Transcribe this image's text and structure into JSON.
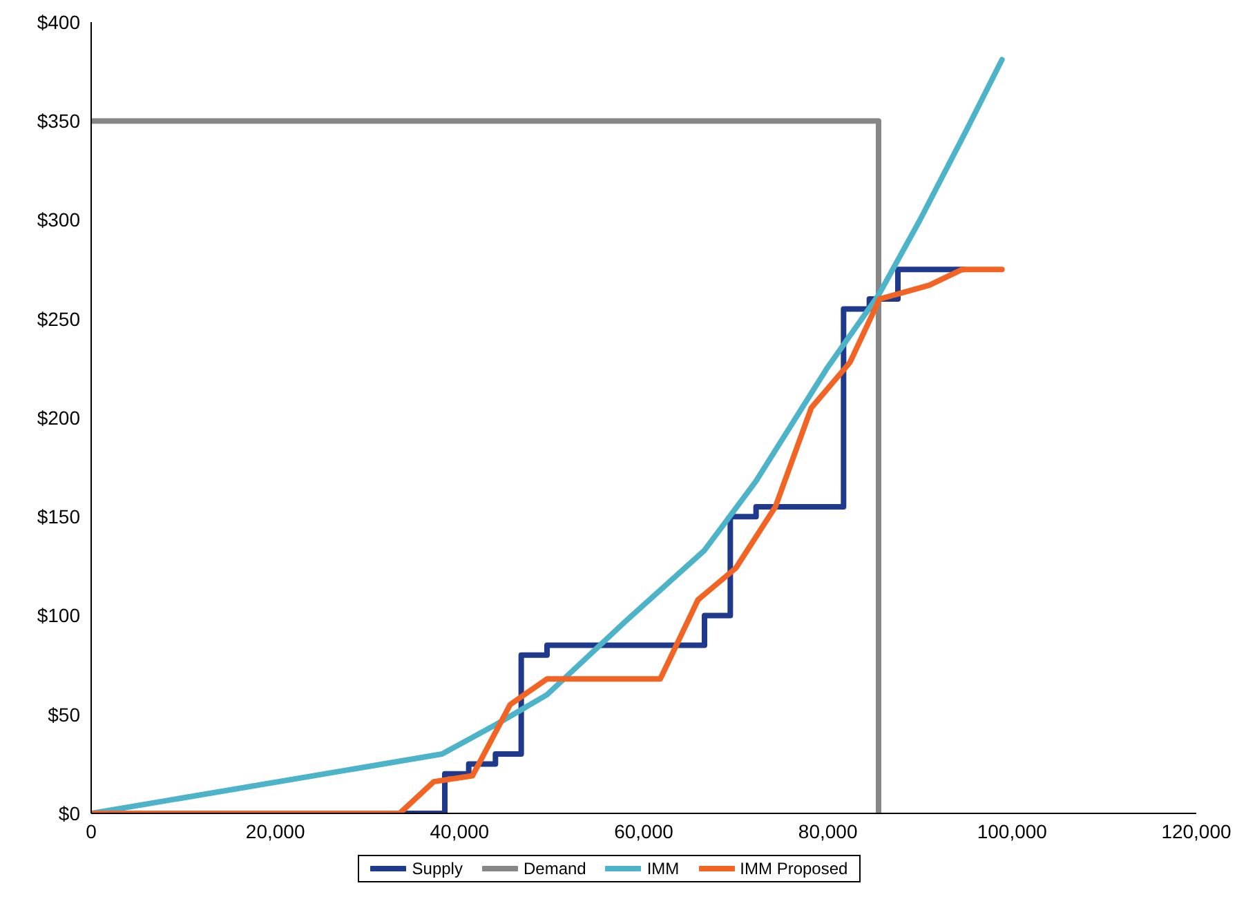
{
  "chart_data": {
    "type": "line",
    "xlim": [
      0,
      120000
    ],
    "ylim": [
      0,
      400
    ],
    "xticks": [
      0,
      {
        "value": 20000,
        "label": "20,000"
      },
      {
        "value": 40000,
        "label": "40,000"
      },
      {
        "value": 60000,
        "label": "60,000"
      },
      {
        "value": 80000,
        "label": "80,000"
      },
      {
        "value": 100000,
        "label": "100,000"
      },
      {
        "value": 120000,
        "label": "120,000"
      }
    ],
    "yticks": [
      {
        "value": 0,
        "label": "$0"
      },
      {
        "value": 50,
        "label": "$50"
      },
      {
        "value": 100,
        "label": "$100"
      },
      {
        "value": 150,
        "label": "$150"
      },
      {
        "value": 200,
        "label": "$200"
      },
      {
        "value": 250,
        "label": "$250"
      },
      {
        "value": 300,
        "label": "$300"
      },
      {
        "value": 350,
        "label": "$350"
      },
      {
        "value": 400,
        "label": "$400"
      }
    ],
    "grid": false,
    "legend": "bottom",
    "marker": "none",
    "line_style": "solid",
    "series": [
      {
        "name": "Supply",
        "type": "step",
        "color": "#1f3a8c",
        "x": [
          0,
          38400,
          41000,
          43900,
          46700,
          49500,
          66600,
          69400,
          72200,
          81700,
          84500,
          87600,
          94800
        ],
        "values": [
          0,
          20,
          25,
          30,
          80,
          85,
          100,
          150,
          155,
          255,
          260,
          275,
          275
        ]
      },
      {
        "name": "Demand",
        "type": "step",
        "color": "#878787",
        "x": [
          0,
          85500
        ],
        "values": [
          350,
          0
        ]
      },
      {
        "name": "IMM",
        "color": "#4db3c9",
        "x": [
          0,
          38100,
          44000,
          49500,
          58000,
          66600,
          72200,
          79900,
          85500,
          90000,
          95000,
          98900
        ],
        "values": [
          0,
          30,
          45,
          60,
          97,
          133,
          168,
          225,
          262,
          300,
          345,
          381
        ]
      },
      {
        "name": "IMM Proposed",
        "color": "#f26424",
        "x": [
          0,
          33500,
          37200,
          41400,
          45500,
          49500,
          61800,
          65900,
          70000,
          74300,
          78200,
          82400,
          85600,
          91000,
          94600,
          98900
        ],
        "values": [
          0,
          0,
          16,
          19,
          55,
          68,
          68,
          108,
          124,
          155,
          205,
          228,
          260,
          267,
          275,
          275
        ]
      }
    ]
  }
}
